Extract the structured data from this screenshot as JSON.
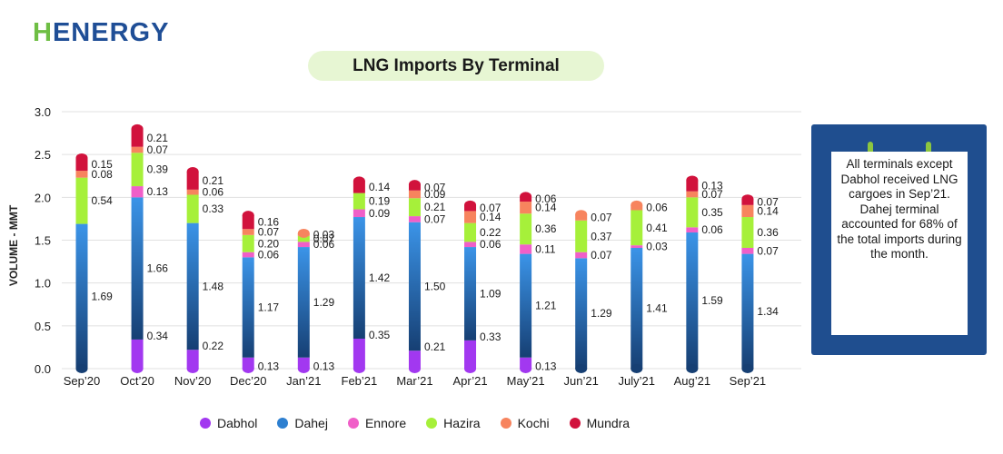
{
  "brand": {
    "logo_prefix": "H",
    "logo_rest": "ENERGY"
  },
  "colors": {
    "Dabhol": "#a238f0",
    "Dahej": "#2d7fd0",
    "Ennore": "#f05fc8",
    "Hazira": "#a6f03a",
    "Kochi": "#f7845e",
    "Mundra": "#d1123c"
  },
  "note": {
    "text": "All terminals except Dabhol received LNG cargoes in Sep’21. Dahej terminal accounted for 68% of the total imports during the month."
  },
  "chart_data": {
    "type": "bar",
    "stacked": true,
    "title": "LNG Imports By Terminal",
    "ylabel": "VOLUME - MMT",
    "xlabel": "",
    "ylim": [
      0,
      3.0
    ],
    "yticks": [
      "0.0",
      "0.5",
      "1.0",
      "1.5",
      "2.0",
      "2.5",
      "3.0"
    ],
    "grid": true,
    "legend_position": "bottom",
    "categories": [
      "Sep’20",
      "Oct’20",
      "Nov’20",
      "Dec’20",
      "Jan’21",
      "Feb’21",
      "Mar’21",
      "Apr’21",
      "May’21",
      "Jun’21",
      "July’21",
      "Aug’21",
      "Sep’21"
    ],
    "series": [
      {
        "name": "Dabhol",
        "values": [
          null,
          0.34,
          0.22,
          0.13,
          0.13,
          0.35,
          0.21,
          0.33,
          0.13,
          null,
          null,
          null,
          null
        ]
      },
      {
        "name": "Dahej",
        "values": [
          1.69,
          1.66,
          1.48,
          1.17,
          1.29,
          1.42,
          1.5,
          1.09,
          1.21,
          1.29,
          1.41,
          1.59,
          1.34
        ]
      },
      {
        "name": "Ennore",
        "values": [
          null,
          0.13,
          null,
          0.06,
          0.06,
          0.09,
          0.07,
          0.06,
          0.11,
          0.07,
          0.03,
          0.06,
          0.07
        ]
      },
      {
        "name": "Hazira",
        "values": [
          0.54,
          0.39,
          0.33,
          0.2,
          0.07,
          0.19,
          0.21,
          0.22,
          0.36,
          0.37,
          0.41,
          0.35,
          0.36
        ]
      },
      {
        "name": "Kochi",
        "values": [
          0.08,
          0.07,
          0.06,
          0.07,
          0.03,
          null,
          0.09,
          0.14,
          0.14,
          0.07,
          0.06,
          0.07,
          0.14
        ]
      },
      {
        "name": "Mundra",
        "values": [
          0.15,
          0.21,
          0.21,
          0.16,
          null,
          0.14,
          0.07,
          0.07,
          0.06,
          null,
          null,
          0.13,
          0.07
        ]
      }
    ]
  }
}
